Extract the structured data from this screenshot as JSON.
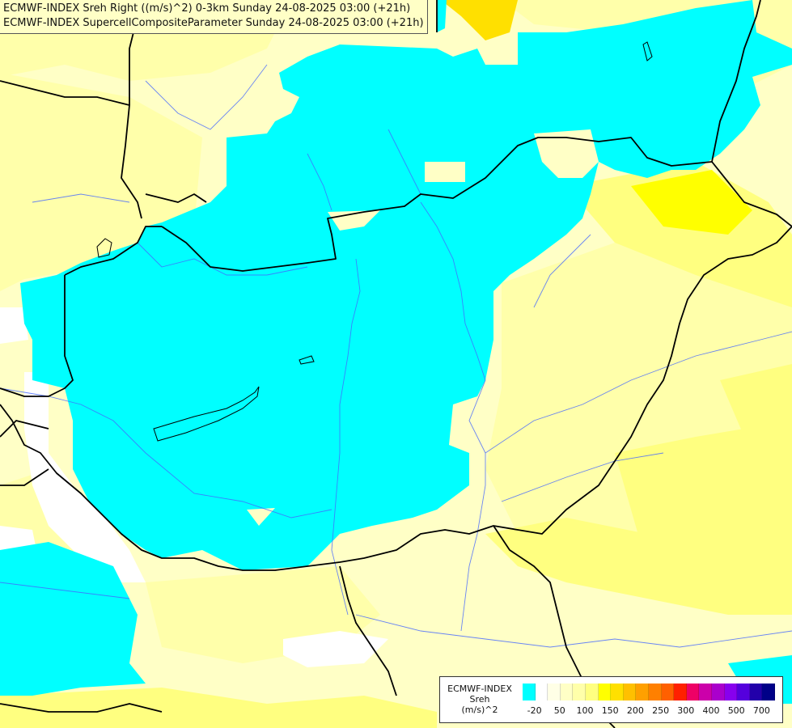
{
  "title": {
    "line1": "ECMWF-INDEX Sreh Right ((m/s)^2) 0-3km Sunday 24-08-2025 03:00 (+21h)",
    "line2": "ECMWF-INDEX SupercellCompositeParameter Sunday 24-08-2025 03:00 (+21h)"
  },
  "legend": {
    "line1": "ECMWF-INDEX",
    "line2": "Sreh",
    "line3": "(m/s)^2",
    "colors": [
      "#00ffff",
      "#ffffff",
      "#ffffe6",
      "#ffffc6",
      "#ffffaa",
      "#ffff80",
      "#ffff00",
      "#ffe000",
      "#ffc000",
      "#ffa000",
      "#ff8000",
      "#ff6000",
      "#ff2000",
      "#ee0066",
      "#cc00aa",
      "#aa00cc",
      "#8800ee",
      "#5500dd",
      "#2200aa",
      "#000088"
    ],
    "ticks": [
      "-20",
      "50",
      "100",
      "150",
      "200",
      "250",
      "300",
      "400",
      "500",
      "700"
    ]
  },
  "colors": {
    "cyan": "#00ffff",
    "pale": "#ffffc6",
    "light_yellow": "#ffffaa",
    "yellow": "#ffff80",
    "bright_yellow": "#ffff00",
    "gold": "#ffe000",
    "white": "#ffffff",
    "border": "#000000",
    "river": "#4466ff"
  }
}
